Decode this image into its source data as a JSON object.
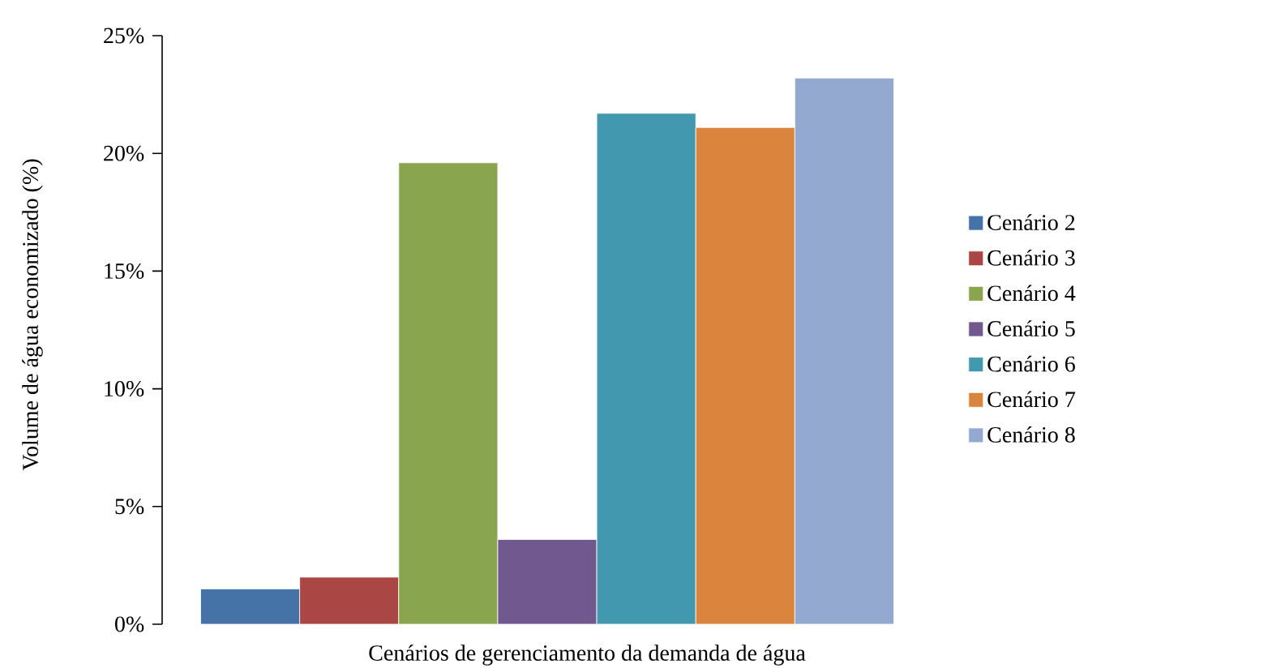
{
  "chart_data": {
    "type": "bar",
    "categories": [
      null
    ],
    "xlabel": "Cenários de gerenciamento da demanda de água",
    "ylabel": "Volume de água economizado (%)",
    "series": [
      {
        "name": "Cenário 2",
        "color": "#4572a7",
        "values": [
          1.5
        ]
      },
      {
        "name": "Cenário 3",
        "color": "#aa4643",
        "values": [
          2.0
        ]
      },
      {
        "name": "Cenário 4",
        "color": "#89a54e",
        "values": [
          19.6
        ]
      },
      {
        "name": "Cenário 5",
        "color": "#71588f",
        "values": [
          3.6
        ]
      },
      {
        "name": "Cenário 6",
        "color": "#4198af",
        "values": [
          21.7
        ]
      },
      {
        "name": "Cenário 7",
        "color": "#db843d",
        "values": [
          21.1
        ]
      },
      {
        "name": "Cenário 8",
        "color": "#93a9cf",
        "values": [
          23.2
        ]
      }
    ],
    "ylim": [
      0,
      25
    ],
    "yticks": [
      {
        "value": 0,
        "label": "0%"
      },
      {
        "value": 5,
        "label": "5%"
      },
      {
        "value": 10,
        "label": "10%"
      },
      {
        "value": 15,
        "label": "15%"
      },
      {
        "value": 20,
        "label": "20%"
      },
      {
        "value": 25,
        "label": "25%"
      }
    ],
    "grid": false,
    "legend": "right"
  }
}
